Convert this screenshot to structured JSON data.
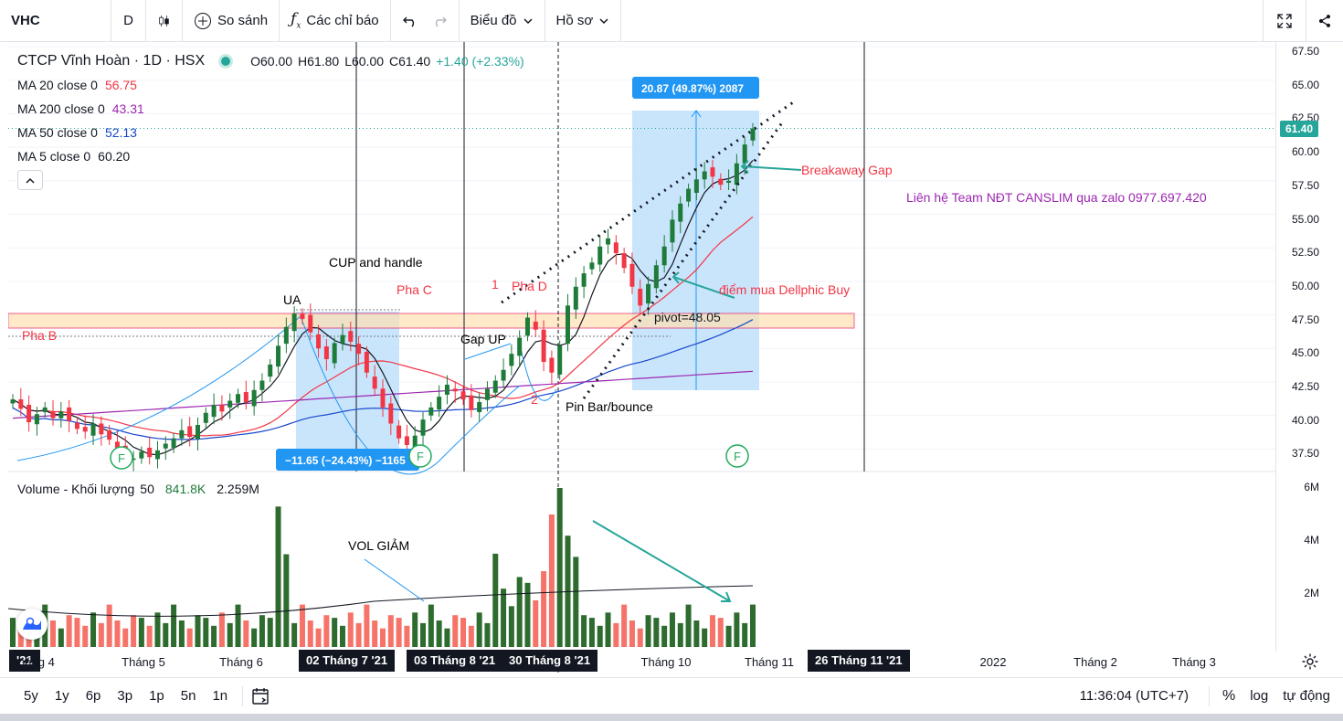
{
  "toolbar": {
    "symbol": "VHC",
    "interval": "D",
    "compare": "So sánh",
    "indicators": "Các chỉ báo",
    "chart_label": "Biểu đồ",
    "profile_label": "Hồ sơ"
  },
  "legend": {
    "title": "CTCP Vĩnh Hoàn · 1D · HSX",
    "ohlc": {
      "o": "O60.00",
      "h": "H61.80",
      "l": "L60.00",
      "c": "C61.40",
      "chg": "+1.40 (+2.33%)"
    },
    "ma": [
      {
        "label": "MA 20 close 0",
        "value": "56.75",
        "color": "#f23645"
      },
      {
        "label": "MA 200 close 0",
        "value": "43.31",
        "color": "#9c27b0"
      },
      {
        "label": "MA 50 close 0",
        "value": "52.13",
        "color": "#1848cc"
      },
      {
        "label": "MA 5 close 0",
        "value": "60.20",
        "color": "#131722"
      }
    ],
    "volume": {
      "label": "Volume - Khối lượng",
      "len": "50",
      "v1": "841.8K",
      "v2": "2.259M"
    }
  },
  "price_axis": [
    "67.50",
    "65.00",
    "62.50",
    "60.00",
    "57.50",
    "55.00",
    "52.50",
    "50.00",
    "47.50",
    "45.00",
    "42.50",
    "40.00",
    "37.50"
  ],
  "last_price": "61.40",
  "volume_axis": [
    "6M",
    "4M",
    "2M"
  ],
  "time_axis": [
    {
      "label": "'21",
      "hl": true
    },
    {
      "label": "háng 4"
    },
    {
      "label": "Tháng 5"
    },
    {
      "label": "Tháng 6"
    },
    {
      "label": "02 Tháng 7 '21",
      "hl": true
    },
    {
      "label": "03 Tháng 8 '21",
      "hl": true
    },
    {
      "label": "30 Tháng 8 '21",
      "hl": true
    },
    {
      "label": "Tháng 10"
    },
    {
      "label": "Tháng 11"
    },
    {
      "label": "26 Tháng 11 '21",
      "hl": true
    },
    {
      "label": "2022"
    },
    {
      "label": "Tháng 2"
    },
    {
      "label": "Tháng 3"
    }
  ],
  "timeframes": [
    "5y",
    "1y",
    "6p",
    "3p",
    "1p",
    "5n",
    "1n"
  ],
  "clock": "11:36:04 (UTC+7)",
  "bottom_right": {
    "pct": "%",
    "log": "log",
    "auto": "tự động"
  },
  "annotations": {
    "ua": "UA",
    "cup": "CUP and handle",
    "pha_b": "Pha B",
    "pha_c": "Pha C",
    "pha_d": "Pha D",
    "one": "1",
    "two": "2",
    "gap_up": "Gap UP",
    "pin": "Pin Bar/bounce",
    "pivot": "pivot=48.05",
    "breakaway": "Breakaway Gap",
    "buy": "điểm mua Dellphic Buy",
    "contact": "Liên hệ Team NĐT CANSLIM qua zalo 0977.697.420",
    "vol": "VOL GIẢM",
    "measure1": "20.87 (49.87%) 2087",
    "measure2": "−11.65 (−24.43%) −1165",
    "f": "F"
  },
  "chart_data": {
    "type": "candlestick",
    "symbol": "VHC",
    "yrange": [
      36,
      68
    ],
    "last": 61.4,
    "closes": [
      41.2,
      40.5,
      39.5,
      40.1,
      40.6,
      39.8,
      40.3,
      39.6,
      39.0,
      38.8,
      39.4,
      38.6,
      38.2,
      37.6,
      37.0,
      36.8,
      37.3,
      36.9,
      37.4,
      37.9,
      38.3,
      38.9,
      38.4,
      39.3,
      40.2,
      40.8,
      40.3,
      41.1,
      41.6,
      41.0,
      41.9,
      42.6,
      43.8,
      45.2,
      46.6,
      47.6,
      47.2,
      46.2,
      45.0,
      44.2,
      45.4,
      46.0,
      45.5,
      44.6,
      43.2,
      42.0,
      40.6,
      39.4,
      38.3,
      37.8,
      38.5,
      39.7,
      40.6,
      41.4,
      42.3,
      41.8,
      41.2,
      40.4,
      41.0,
      42.0,
      42.6,
      43.4,
      44.6,
      45.8,
      47.3,
      46.4,
      44.0,
      43.2,
      45.2,
      48.2,
      49.6,
      50.6,
      51.4,
      52.6,
      53.2,
      52.1,
      51.0,
      49.6,
      48.2,
      49.8,
      51.2,
      52.6,
      54.6,
      55.8,
      56.9,
      57.6,
      58.2,
      57.8,
      57.2,
      57.5,
      58.8,
      60.2,
      61.4
    ]
  }
}
